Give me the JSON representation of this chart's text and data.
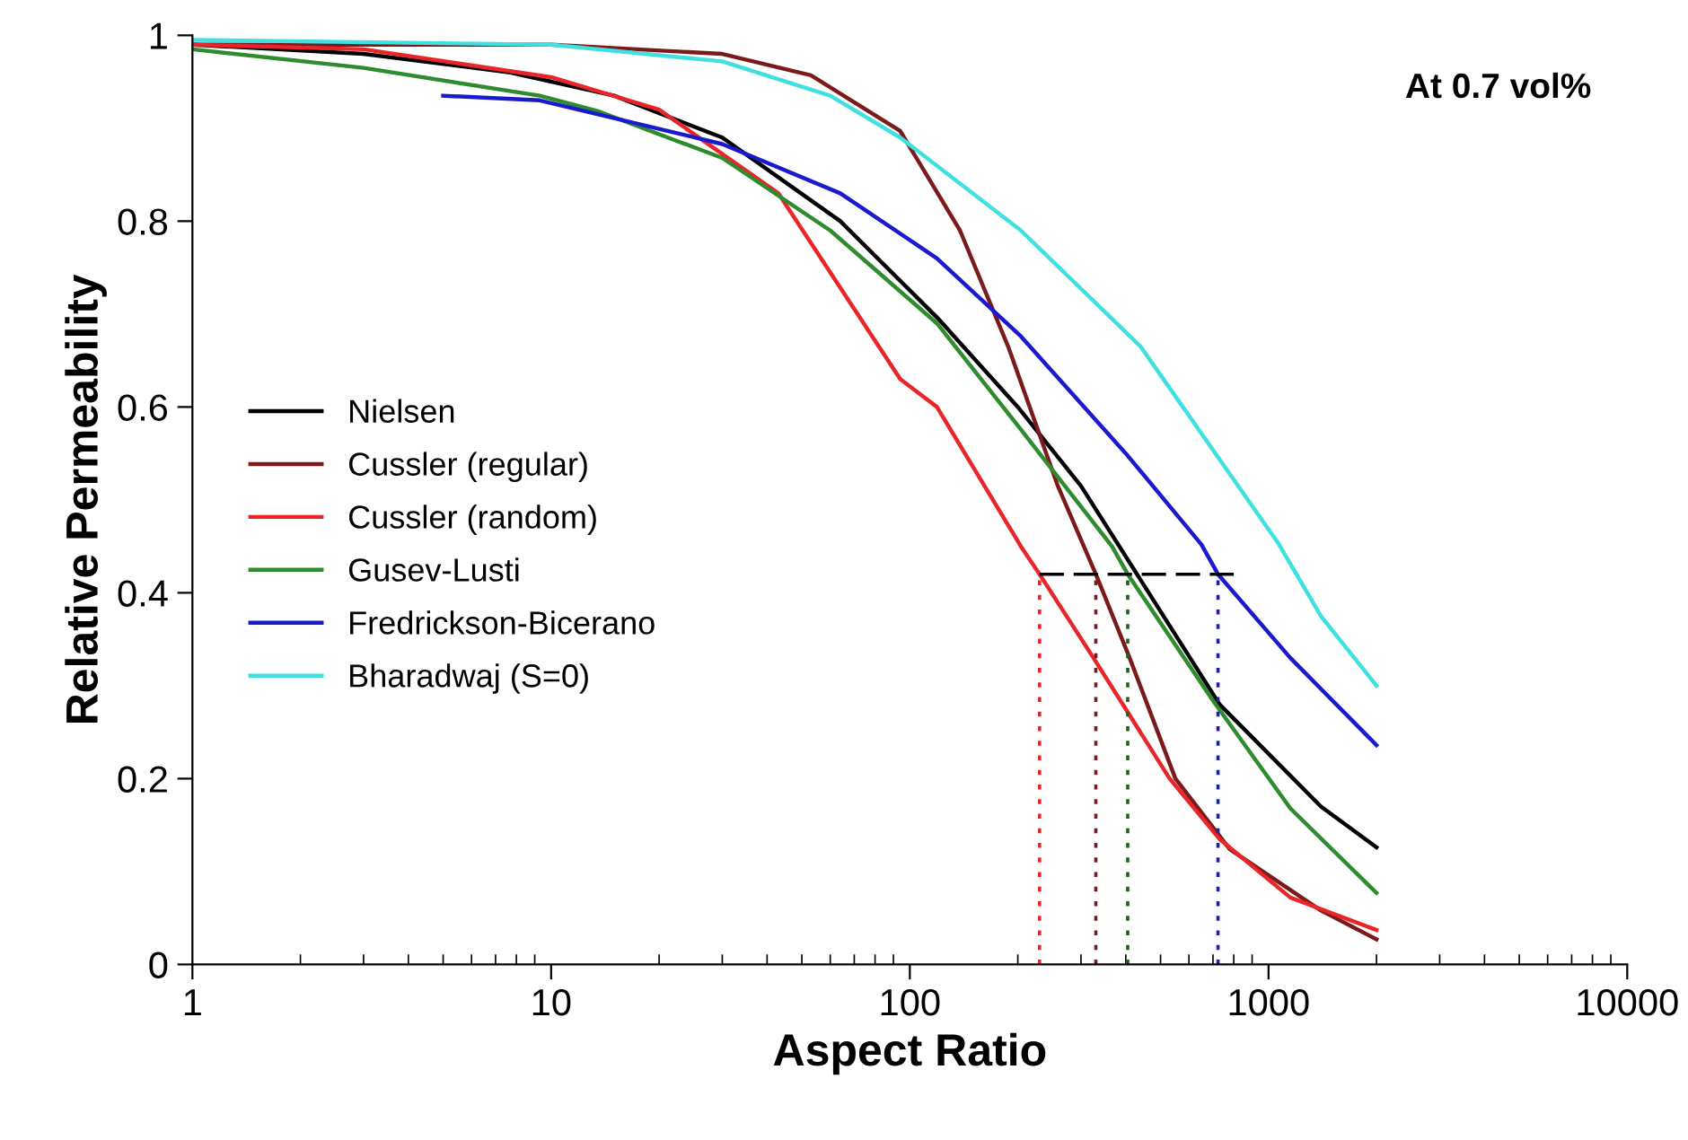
{
  "chart_data": {
    "type": "line",
    "xlabel": "Aspect Ratio",
    "ylabel": "Relative Permeability",
    "log": "x",
    "xlim": [
      1,
      10000
    ],
    "xticks": [
      1,
      10,
      100,
      1000,
      10000
    ],
    "ylim": [
      0,
      1
    ],
    "yticks": [
      {
        "value": 0,
        "label": "0"
      },
      0.2,
      0.4,
      0.6,
      0.8,
      {
        "value": 1,
        "label": "1"
      }
    ],
    "grid": false,
    "legend": "left",
    "marker": "none",
    "line_style": "solid",
    "annotations": [
      "At 0.7 vol%"
    ],
    "series": [
      {
        "name": "Nielsen",
        "color": "#000000",
        "x": [
          1,
          3,
          7.7,
          15,
          30,
          64,
          120,
          200,
          300,
          500,
          730,
          1400,
          2000
        ],
        "values": [
          0.99,
          0.98,
          0.96,
          0.935,
          0.89,
          0.8,
          0.695,
          0.6,
          0.515,
          0.38,
          0.28,
          0.17,
          0.126
        ]
      },
      {
        "name": "Cussler (regular)",
        "color": "#7b1a1a",
        "x": [
          1,
          10,
          30,
          53,
          94,
          138,
          188,
          258,
          330,
          410,
          550,
          780,
          1400,
          2000
        ],
        "values": [
          0.99,
          0.99,
          0.98,
          0.957,
          0.897,
          0.79,
          0.665,
          0.516,
          0.42,
          0.33,
          0.2,
          0.124,
          0.058,
          0.027
        ]
      },
      {
        "name": "Cussler (random)",
        "color": "#e8262a",
        "x": [
          1,
          3,
          10,
          20,
          43,
          94,
          119,
          204,
          230,
          325,
          530,
          730,
          1150,
          2000
        ],
        "values": [
          0.99,
          0.985,
          0.955,
          0.92,
          0.83,
          0.63,
          0.6,
          0.45,
          0.42,
          0.33,
          0.2,
          0.135,
          0.072,
          0.037
        ]
      },
      {
        "name": "Gusev-Lusti",
        "color": "#2e8b2e",
        "x": [
          1,
          3,
          9.3,
          13.6,
          30,
          60,
          119,
          200,
          366,
          405,
          700,
          1150,
          2000
        ],
        "values": [
          0.985,
          0.965,
          0.935,
          0.918,
          0.868,
          0.79,
          0.69,
          0.58,
          0.45,
          0.42,
          0.284,
          0.168,
          0.077
        ]
      },
      {
        "name": "Fredrickson-Bicerano",
        "color": "#1a1acc",
        "x": [
          5,
          9.3,
          30,
          64,
          119,
          204,
          400,
          650,
          723,
          1150,
          2000
        ],
        "values": [
          0.935,
          0.93,
          0.883,
          0.83,
          0.76,
          0.676,
          0.55,
          0.452,
          0.42,
          0.33,
          0.236
        ]
      },
      {
        "name": "Bharadwaj (S=0)",
        "color": "#40e0e0",
        "x": [
          1,
          10,
          30,
          60,
          94,
          204,
          440,
          1070,
          1400,
          2000
        ],
        "values": [
          0.995,
          0.99,
          0.972,
          0.935,
          0.89,
          0.79,
          0.665,
          0.452,
          0.375,
          0.3
        ]
      },
      {
        "color": "#000000",
        "line_style": "dashed",
        "x": [
          230,
          800
        ],
        "values": [
          0.42,
          0.42
        ]
      },
      {
        "color": "#e8262a",
        "line_style": "dotted",
        "x": [
          230,
          230
        ],
        "values": [
          0,
          0.42
        ]
      },
      {
        "color": "#7b1a1a",
        "line_style": "dotted",
        "x": [
          330,
          330
        ],
        "values": [
          0,
          0.42
        ]
      },
      {
        "color": "#1f5f1f",
        "line_style": "dotted",
        "x": [
          405,
          405
        ],
        "values": [
          0,
          0.42
        ]
      },
      {
        "color": "#1a1acc",
        "line_style": "dotted",
        "x": [
          723,
          723
        ],
        "values": [
          0,
          0.42
        ]
      }
    ]
  }
}
